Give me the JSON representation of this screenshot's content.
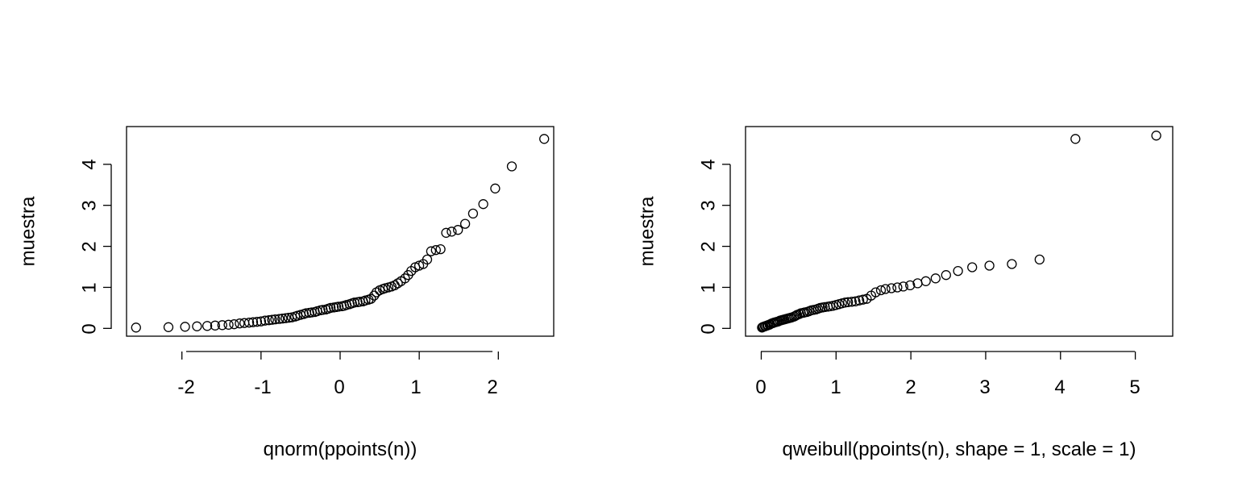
{
  "chart_data": [
    {
      "type": "scatter",
      "title": "",
      "xlabel": "qnorm(ppoints(n))",
      "ylabel": "muestra",
      "xlim": [
        -2.7,
        2.7
      ],
      "ylim": [
        -0.19,
        4.92
      ],
      "xticks": [
        -2,
        -1,
        0,
        1,
        2
      ],
      "xtick_labels": [
        "-2",
        "-1",
        "0",
        "1",
        "2"
      ],
      "yticks": [
        0,
        1,
        2,
        3,
        4
      ],
      "ytick_labels": [
        "0",
        "1",
        "2",
        "3",
        "4"
      ],
      "grid": false,
      "points": [
        [
          -2.58,
          0.02
        ],
        [
          -2.17,
          0.03
        ],
        [
          -1.96,
          0.04
        ],
        [
          -1.81,
          0.05
        ],
        [
          -1.68,
          0.06
        ],
        [
          -1.58,
          0.07
        ],
        [
          -1.49,
          0.08
        ],
        [
          -1.41,
          0.09
        ],
        [
          -1.34,
          0.1
        ],
        [
          -1.27,
          0.12
        ],
        [
          -1.21,
          0.13
        ],
        [
          -1.15,
          0.14
        ],
        [
          -1.1,
          0.15
        ],
        [
          -1.05,
          0.16
        ],
        [
          -1.0,
          0.17
        ],
        [
          -0.95,
          0.19
        ],
        [
          -0.9,
          0.2
        ],
        [
          -0.86,
          0.21
        ],
        [
          -0.82,
          0.22
        ],
        [
          -0.77,
          0.23
        ],
        [
          -0.73,
          0.24
        ],
        [
          -0.69,
          0.25
        ],
        [
          -0.65,
          0.26
        ],
        [
          -0.61,
          0.27
        ],
        [
          -0.57,
          0.29
        ],
        [
          -0.54,
          0.31
        ],
        [
          -0.5,
          0.33
        ],
        [
          -0.46,
          0.35
        ],
        [
          -0.43,
          0.37
        ],
        [
          -0.39,
          0.38
        ],
        [
          -0.36,
          0.39
        ],
        [
          -0.32,
          0.4
        ],
        [
          -0.29,
          0.42
        ],
        [
          -0.25,
          0.44
        ],
        [
          -0.22,
          0.45
        ],
        [
          -0.18,
          0.46
        ],
        [
          -0.15,
          0.48
        ],
        [
          -0.12,
          0.5
        ],
        [
          -0.08,
          0.51
        ],
        [
          -0.05,
          0.52
        ],
        [
          -0.02,
          0.53
        ],
        [
          0.02,
          0.54
        ],
        [
          0.05,
          0.55
        ],
        [
          0.08,
          0.57
        ],
        [
          0.12,
          0.59
        ],
        [
          0.15,
          0.61
        ],
        [
          0.18,
          0.63
        ],
        [
          0.22,
          0.64
        ],
        [
          0.25,
          0.65
        ],
        [
          0.29,
          0.66
        ],
        [
          0.32,
          0.68
        ],
        [
          0.36,
          0.7
        ],
        [
          0.39,
          0.72
        ],
        [
          0.43,
          0.8
        ],
        [
          0.46,
          0.88
        ],
        [
          0.5,
          0.93
        ],
        [
          0.54,
          0.96
        ],
        [
          0.57,
          0.98
        ],
        [
          0.61,
          1.0
        ],
        [
          0.65,
          1.02
        ],
        [
          0.69,
          1.05
        ],
        [
          0.73,
          1.1
        ],
        [
          0.77,
          1.15
        ],
        [
          0.82,
          1.22
        ],
        [
          0.86,
          1.3
        ],
        [
          0.9,
          1.4
        ],
        [
          0.95,
          1.49
        ],
        [
          1.0,
          1.53
        ],
        [
          1.05,
          1.57
        ],
        [
          1.1,
          1.68
        ],
        [
          1.15,
          1.88
        ],
        [
          1.21,
          1.91
        ],
        [
          1.27,
          1.93
        ],
        [
          1.34,
          2.33
        ],
        [
          1.41,
          2.36
        ],
        [
          1.49,
          2.4
        ],
        [
          1.58,
          2.55
        ],
        [
          1.68,
          2.8
        ],
        [
          1.81,
          3.03
        ],
        [
          1.96,
          3.41
        ],
        [
          2.17,
          3.95
        ],
        [
          2.58,
          4.62
        ]
      ]
    },
    {
      "type": "scatter",
      "title": "",
      "xlabel": "qweibull(ppoints(n), shape = 1, scale = 1)",
      "ylabel": "muestra",
      "xlim": [
        -0.21,
        5.5
      ],
      "ylim": [
        -0.19,
        4.92
      ],
      "xticks": [
        0,
        1,
        2,
        3,
        4,
        5
      ],
      "xtick_labels": [
        "0",
        "1",
        "2",
        "3",
        "4",
        "5"
      ],
      "yticks": [
        0,
        1,
        2,
        3,
        4
      ],
      "ytick_labels": [
        "0",
        "1",
        "2",
        "3",
        "4"
      ],
      "grid": false,
      "points": [
        [
          0.01,
          0.02
        ],
        [
          0.02,
          0.03
        ],
        [
          0.03,
          0.04
        ],
        [
          0.05,
          0.05
        ],
        [
          0.06,
          0.06
        ],
        [
          0.08,
          0.07
        ],
        [
          0.09,
          0.08
        ],
        [
          0.11,
          0.09
        ],
        [
          0.12,
          0.1
        ],
        [
          0.14,
          0.12
        ],
        [
          0.16,
          0.13
        ],
        [
          0.17,
          0.14
        ],
        [
          0.19,
          0.15
        ],
        [
          0.21,
          0.16
        ],
        [
          0.23,
          0.17
        ],
        [
          0.25,
          0.19
        ],
        [
          0.27,
          0.2
        ],
        [
          0.29,
          0.21
        ],
        [
          0.31,
          0.22
        ],
        [
          0.33,
          0.23
        ],
        [
          0.35,
          0.24
        ],
        [
          0.37,
          0.25
        ],
        [
          0.39,
          0.26
        ],
        [
          0.41,
          0.27
        ],
        [
          0.44,
          0.29
        ],
        [
          0.46,
          0.31
        ],
        [
          0.48,
          0.33
        ],
        [
          0.51,
          0.35
        ],
        [
          0.53,
          0.37
        ],
        [
          0.56,
          0.38
        ],
        [
          0.58,
          0.39
        ],
        [
          0.61,
          0.4
        ],
        [
          0.64,
          0.42
        ],
        [
          0.67,
          0.44
        ],
        [
          0.7,
          0.45
        ],
        [
          0.73,
          0.46
        ],
        [
          0.76,
          0.48
        ],
        [
          0.79,
          0.5
        ],
        [
          0.82,
          0.51
        ],
        [
          0.85,
          0.52
        ],
        [
          0.89,
          0.53
        ],
        [
          0.92,
          0.54
        ],
        [
          0.96,
          0.55
        ],
        [
          1.0,
          0.57
        ],
        [
          1.04,
          0.59
        ],
        [
          1.08,
          0.61
        ],
        [
          1.12,
          0.63
        ],
        [
          1.16,
          0.64
        ],
        [
          1.21,
          0.65
        ],
        [
          1.26,
          0.66
        ],
        [
          1.31,
          0.68
        ],
        [
          1.36,
          0.7
        ],
        [
          1.41,
          0.72
        ],
        [
          1.47,
          0.8
        ],
        [
          1.53,
          0.88
        ],
        [
          1.6,
          0.93
        ],
        [
          1.66,
          0.96
        ],
        [
          1.74,
          0.98
        ],
        [
          1.82,
          1.0
        ],
        [
          1.9,
          1.02
        ],
        [
          1.99,
          1.05
        ],
        [
          2.09,
          1.1
        ],
        [
          2.2,
          1.15
        ],
        [
          2.33,
          1.22
        ],
        [
          2.47,
          1.3
        ],
        [
          2.63,
          1.4
        ],
        [
          2.82,
          1.49
        ],
        [
          3.05,
          1.53
        ],
        [
          3.35,
          1.57
        ],
        [
          3.72,
          1.68
        ],
        [
          4.2,
          4.62
        ],
        [
          5.28,
          4.7
        ]
      ]
    }
  ]
}
